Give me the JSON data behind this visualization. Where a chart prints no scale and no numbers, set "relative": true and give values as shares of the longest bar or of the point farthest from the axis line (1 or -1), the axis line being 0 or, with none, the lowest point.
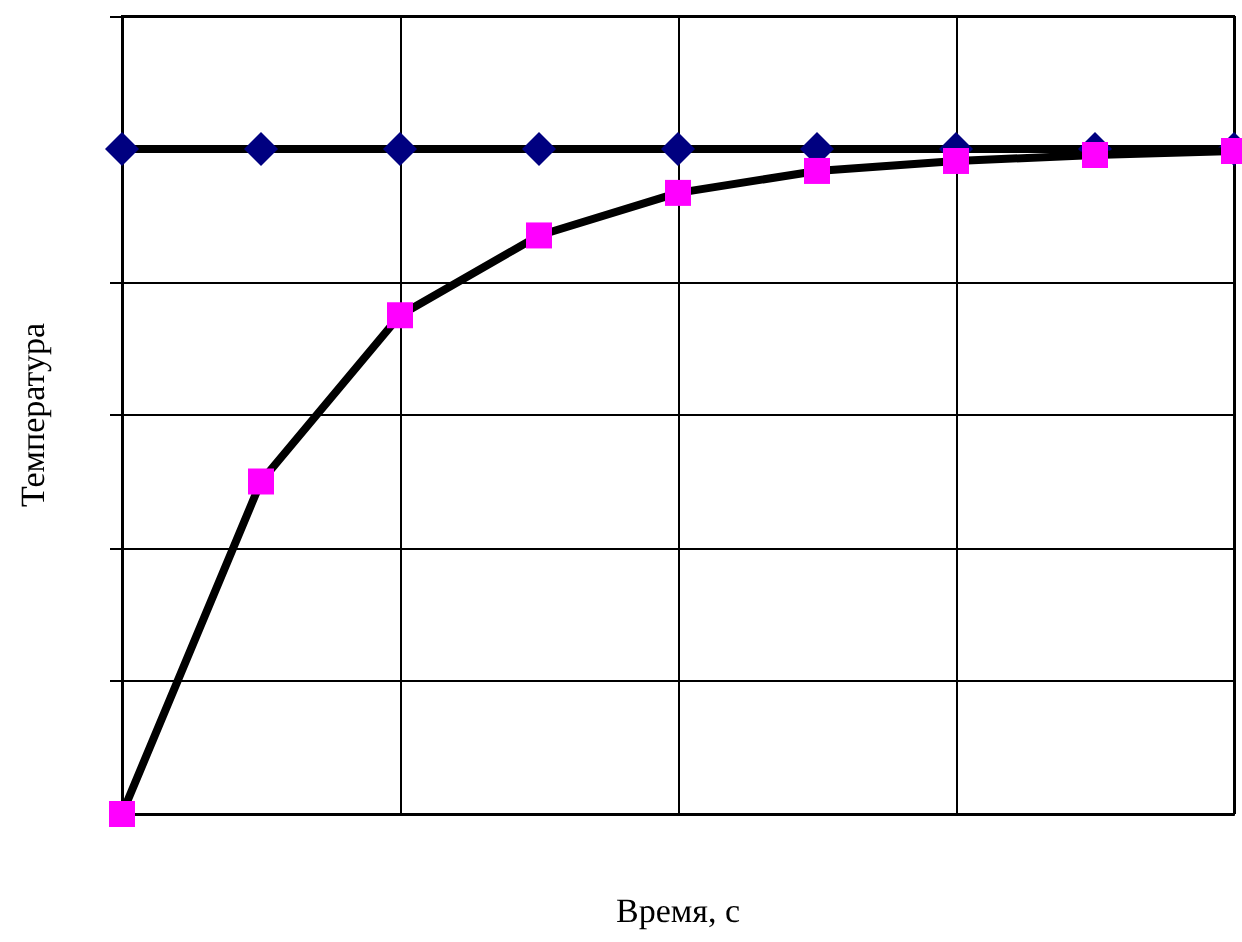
{
  "chart_data": {
    "type": "line",
    "relative": true,
    "xlabel": "Время, с",
    "ylabel": "Температура",
    "categories": [
      null,
      null,
      null,
      null,
      null,
      null,
      null,
      null,
      null
    ],
    "series": [
      {
        "color": "#000000",
        "colors": [
          "#000080",
          "#000080",
          "#000080",
          "#000080",
          "#000080",
          "#000080",
          "#000080",
          "#000080",
          "#000080"
        ],
        "marker": "diamond",
        "values": [
          1,
          1,
          1,
          1,
          1,
          1,
          1,
          1,
          1
        ]
      },
      {
        "color": "#000000",
        "colors": [
          "#ff00ff",
          "#ff00ff",
          "#ff00ff",
          "#ff00ff",
          "#ff00ff",
          "#ff00ff",
          "#ff00ff",
          "#ff00ff",
          "#ff00ff"
        ],
        "marker": "square",
        "values": [
          0,
          0.5,
          0.75,
          0.87,
          0.934,
          0.967,
          0.982,
          0.991,
          0.997
        ]
      }
    ],
    "grid": true
  }
}
